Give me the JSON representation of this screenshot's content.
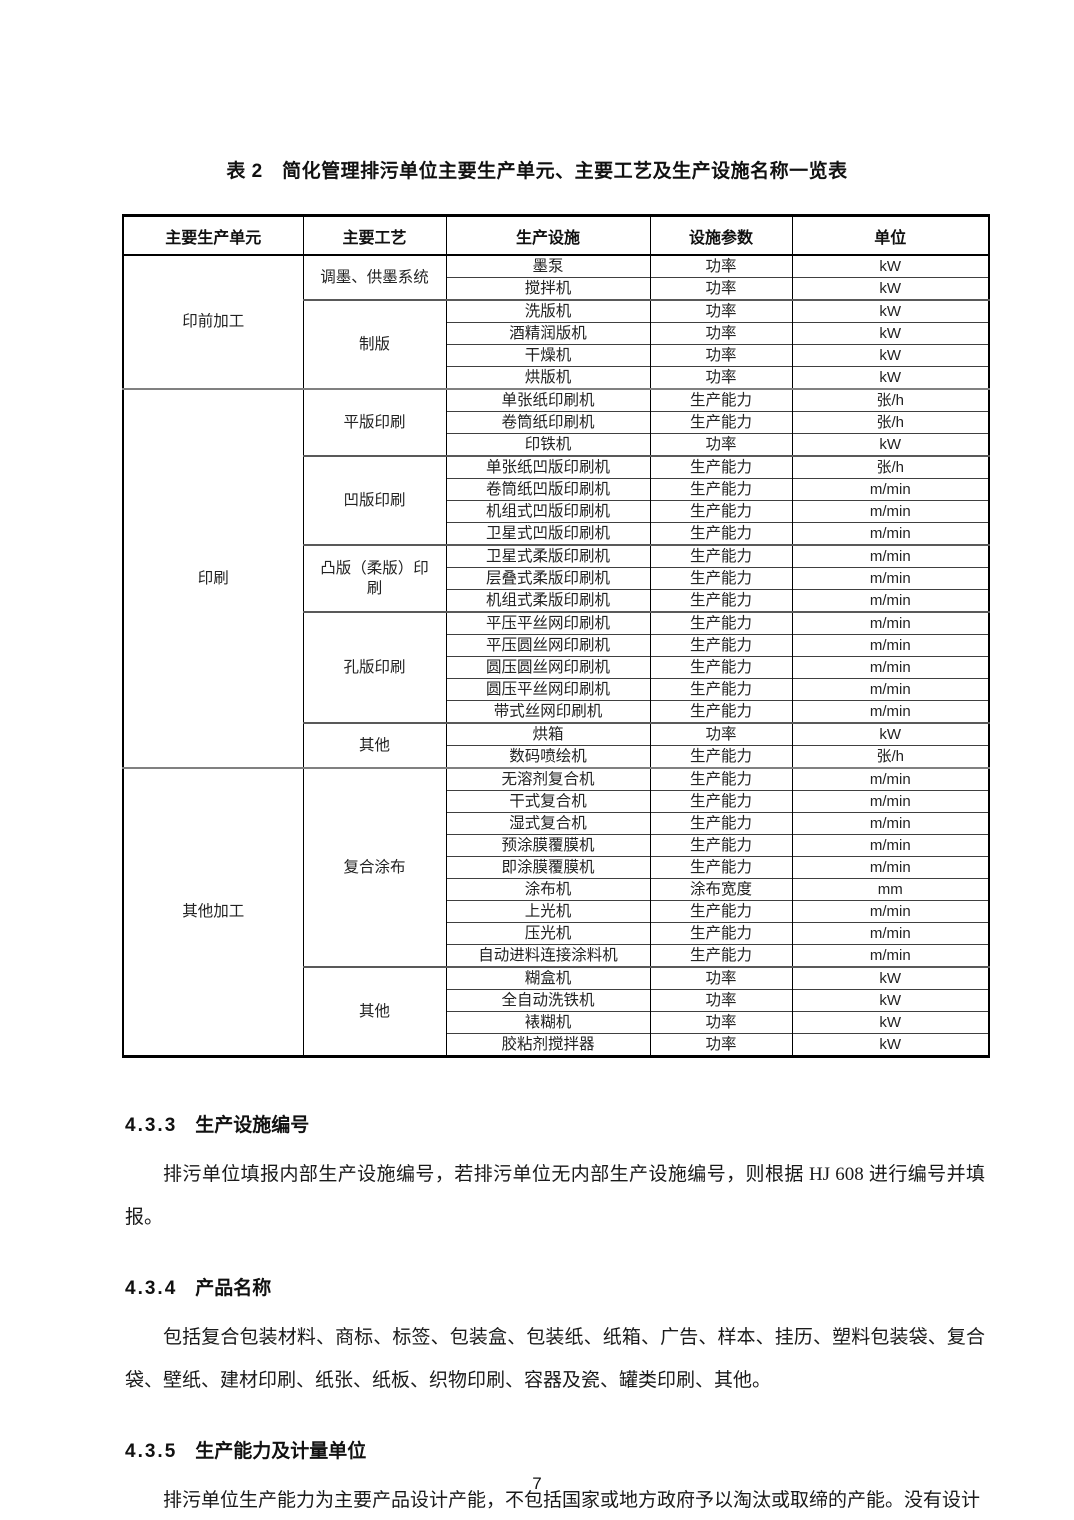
{
  "page": {
    "title": "表 2　简化管理排污单位主要生产单元、主要工艺及生产设施名称一览表",
    "page_number": "7"
  },
  "colors": {
    "text": "#1a1a1a",
    "table_outer_border": "#000000",
    "row_line": "#404040",
    "group_line": "#808080"
  },
  "table": {
    "headers": [
      "主要生产单元",
      "主要工艺",
      "生产设施",
      "设施参数",
      "单位"
    ],
    "groups": [
      {
        "unit": "印前加工",
        "processes": [
          {
            "name": "调墨、供墨系统",
            "rows": [
              [
                "墨泵",
                "功率",
                "kW"
              ],
              [
                "搅拌机",
                "功率",
                "kW"
              ]
            ]
          },
          {
            "name": "制版",
            "rows": [
              [
                "洗版机",
                "功率",
                "kW"
              ],
              [
                "酒精润版机",
                "功率",
                "kW"
              ],
              [
                "干燥机",
                "功率",
                "kW"
              ],
              [
                "烘版机",
                "功率",
                "kW"
              ]
            ]
          }
        ]
      },
      {
        "unit": "印刷",
        "processes": [
          {
            "name": "平版印刷",
            "rows": [
              [
                "单张纸印刷机",
                "生产能力",
                "张/h"
              ],
              [
                "卷筒纸印刷机",
                "生产能力",
                "张/h"
              ],
              [
                "印铁机",
                "功率",
                "kW"
              ]
            ]
          },
          {
            "name": "凹版印刷",
            "rows": [
              [
                "单张纸凹版印刷机",
                "生产能力",
                "张/h"
              ],
              [
                "卷筒纸凹版印刷机",
                "生产能力",
                "m/min"
              ],
              [
                "机组式凹版印刷机",
                "生产能力",
                "m/min"
              ],
              [
                "卫星式凹版印刷机",
                "生产能力",
                "m/min"
              ]
            ]
          },
          {
            "name": "凸版（柔版）印刷",
            "rows": [
              [
                "卫星式柔版印刷机",
                "生产能力",
                "m/min"
              ],
              [
                "层叠式柔版印刷机",
                "生产能力",
                "m/min"
              ],
              [
                "机组式柔版印刷机",
                "生产能力",
                "m/min"
              ]
            ]
          },
          {
            "name": "孔版印刷",
            "rows": [
              [
                "平压平丝网印刷机",
                "生产能力",
                "m/min"
              ],
              [
                "平压圆丝网印刷机",
                "生产能力",
                "m/min"
              ],
              [
                "圆压圆丝网印刷机",
                "生产能力",
                "m/min"
              ],
              [
                "圆压平丝网印刷机",
                "生产能力",
                "m/min"
              ],
              [
                "带式丝网印刷机",
                "生产能力",
                "m/min"
              ]
            ]
          },
          {
            "name": "其他",
            "rows": [
              [
                "烘箱",
                "功率",
                "kW"
              ],
              [
                "数码喷绘机",
                "生产能力",
                "张/h"
              ]
            ]
          }
        ]
      },
      {
        "unit": "其他加工",
        "processes": [
          {
            "name": "复合涂布",
            "rows": [
              [
                "无溶剂复合机",
                "生产能力",
                "m/min"
              ],
              [
                "干式复合机",
                "生产能力",
                "m/min"
              ],
              [
                "湿式复合机",
                "生产能力",
                "m/min"
              ],
              [
                "预涂膜覆膜机",
                "生产能力",
                "m/min"
              ],
              [
                "即涂膜覆膜机",
                "生产能力",
                "m/min"
              ],
              [
                "涂布机",
                "涂布宽度",
                "mm"
              ],
              [
                "上光机",
                "生产能力",
                "m/min"
              ],
              [
                "压光机",
                "生产能力",
                "m/min"
              ],
              [
                "自动进料连接涂料机",
                "生产能力",
                "m/min"
              ]
            ]
          },
          {
            "name": "其他",
            "rows": [
              [
                "糊盒机",
                "功率",
                "kW"
              ],
              [
                "全自动洗铁机",
                "功率",
                "kW"
              ],
              [
                "裱糊机",
                "功率",
                "kW"
              ],
              [
                "胶粘剂搅拌器",
                "功率",
                "kW"
              ]
            ]
          }
        ]
      }
    ]
  },
  "sections": [
    {
      "number": "4.3.3",
      "heading": "生产设施编号",
      "paragraphs": [
        "排污单位填报内部生产设施编号，若排污单位无内部生产设施编号，则根据 HJ 608 进行编号并填报。"
      ]
    },
    {
      "number": "4.3.4",
      "heading": "产品名称",
      "paragraphs": [
        "包括复合包装材料、商标、标签、包装盒、包装纸、纸箱、广告、样本、挂历、塑料包装袋、复合袋、壁纸、建材印刷、纸张、纸板、织物印刷、容器及瓷、罐类印刷、其他。"
      ]
    },
    {
      "number": "4.3.5",
      "heading": "生产能力及计量单位",
      "paragraphs": [
        "排污单位生产能力为主要产品设计产能，不包括国家或地方政府予以淘汰或取缔的产能。没有设计"
      ]
    }
  ]
}
